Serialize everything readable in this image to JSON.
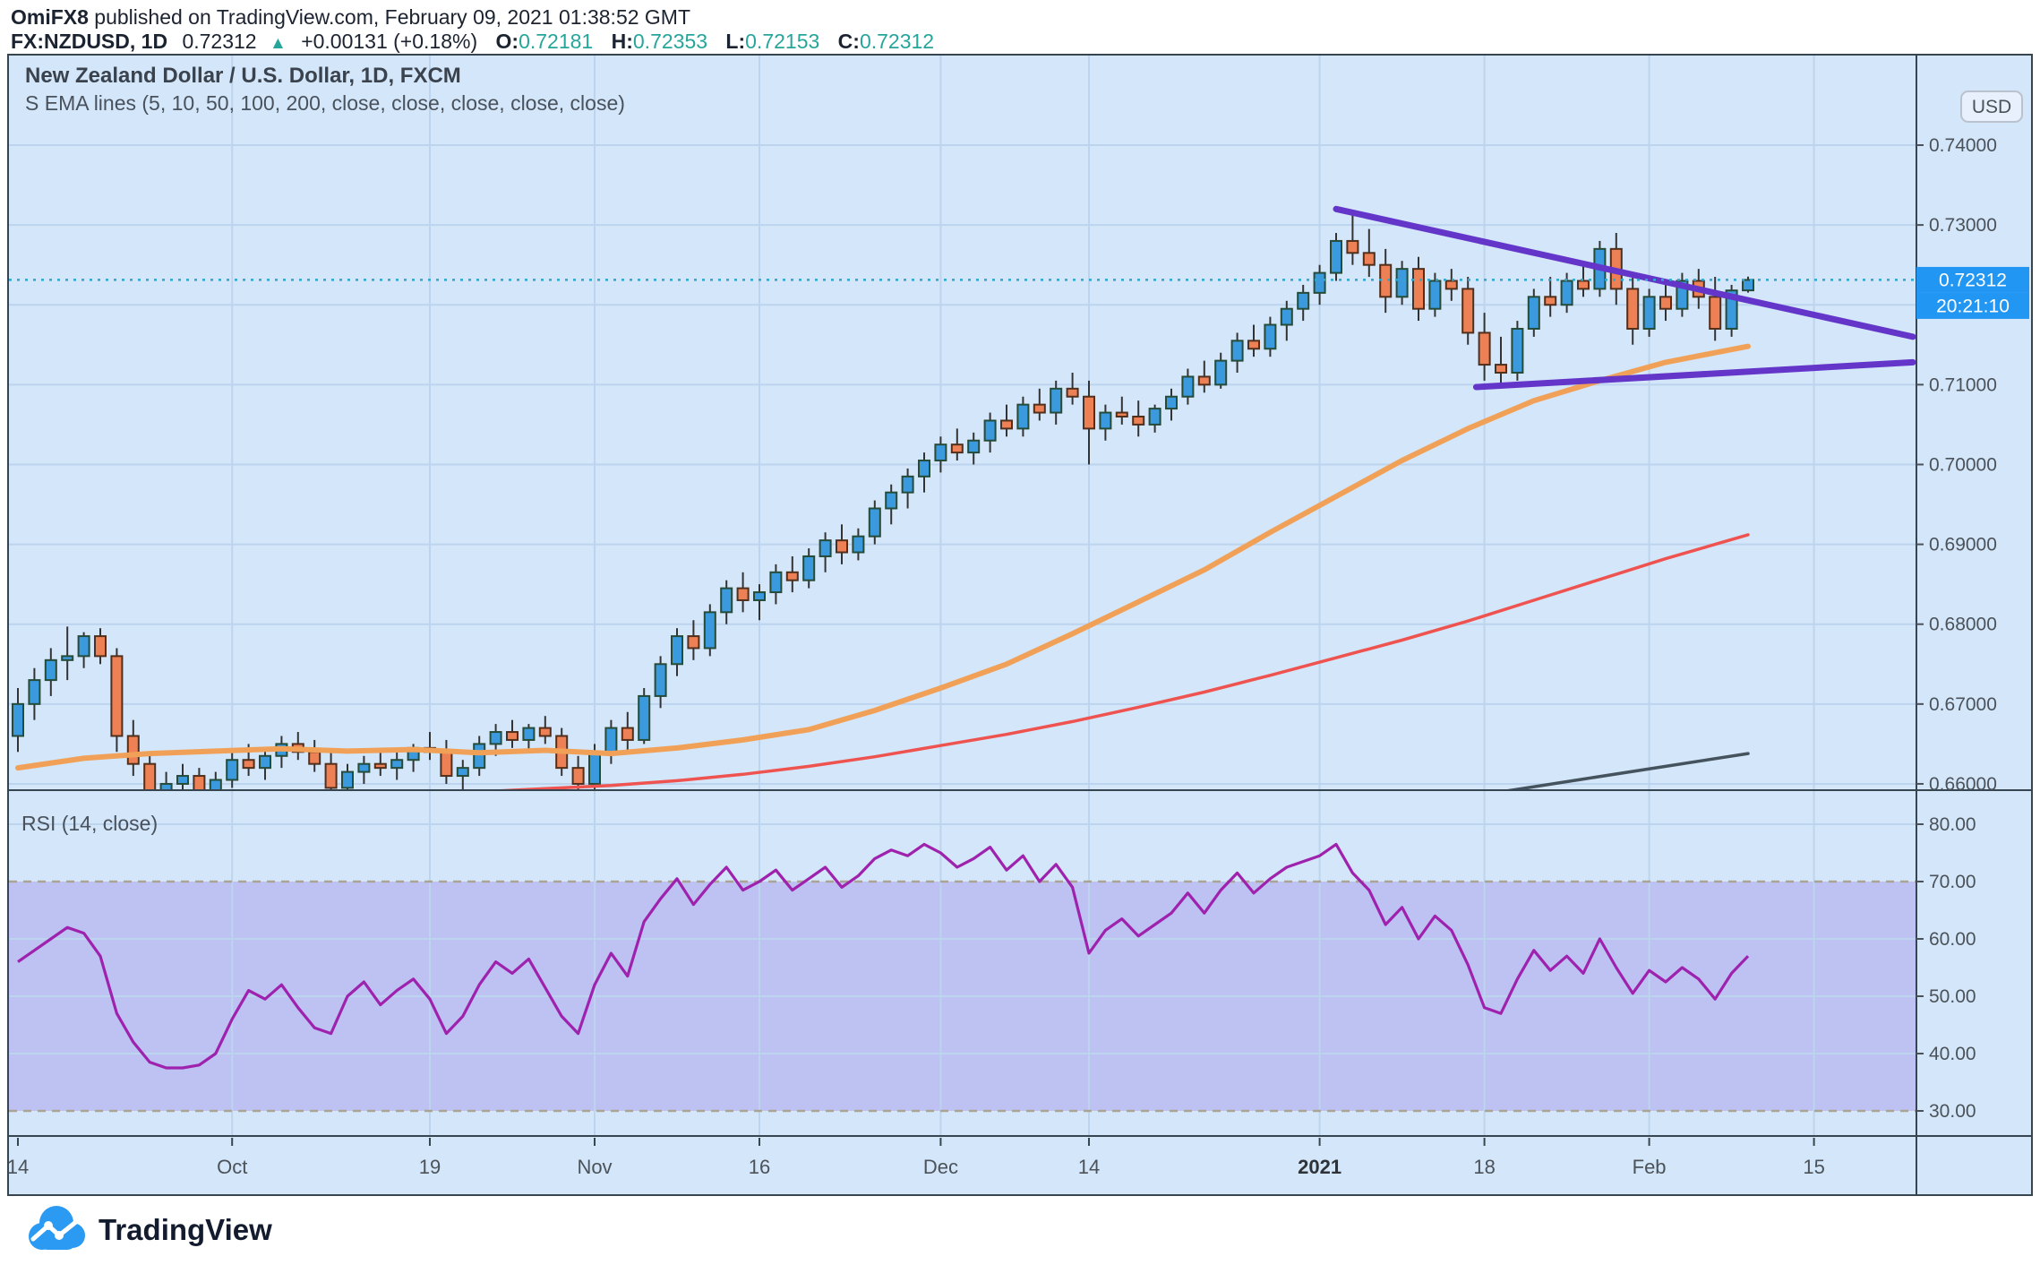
{
  "header": {
    "author": "OmiFX8",
    "published": " published on TradingView.com, February 09, 2021 01:38:52 GMT"
  },
  "symbol_bar": {
    "symbol": "FX:NZDUSD, 1D",
    "last_price": "0.72312",
    "change": "+0.00131 (+0.18%)",
    "open_label": "O:",
    "open": "0.72181",
    "high_label": "H:",
    "high": "0.72353",
    "low_label": "L:",
    "low": "0.72153",
    "close_label": "C:",
    "close": "0.72312"
  },
  "main_chart": {
    "title": "New Zealand Dollar / U.S. Dollar, 1D, FXCM",
    "indicator_label": "S EMA lines (5, 10, 50, 100, 200, close, close, close, close, close)",
    "currency_badge": "USD",
    "price_badge": "0.72312",
    "countdown_badge": "20:21:10",
    "price_axis_labels": [
      {
        "text": "0.74000",
        "p": 0.74
      },
      {
        "text": "0.73000",
        "p": 0.73
      },
      {
        "text": "0.71000",
        "p": 0.71
      },
      {
        "text": "0.70000",
        "p": 0.7
      },
      {
        "text": "0.69000",
        "p": 0.69
      },
      {
        "text": "0.68000",
        "p": 0.68
      },
      {
        "text": "0.67000",
        "p": 0.67
      },
      {
        "text": "0.66000",
        "p": 0.66
      }
    ]
  },
  "rsi_pane": {
    "label": "RSI (14, close)",
    "axis_labels": [
      {
        "text": "80.00",
        "v": 80
      },
      {
        "text": "70.00",
        "v": 70
      },
      {
        "text": "60.00",
        "v": 60
      },
      {
        "text": "50.00",
        "v": 50
      },
      {
        "text": "40.00",
        "v": 40
      },
      {
        "text": "30.00",
        "v": 30
      }
    ]
  },
  "time_axis": {
    "labels": [
      {
        "text": "14",
        "i": 0,
        "grid": false,
        "bold": false
      },
      {
        "text": "Oct",
        "i": 13,
        "grid": true,
        "bold": false
      },
      {
        "text": "19",
        "i": 25,
        "grid": true,
        "bold": false
      },
      {
        "text": "Nov",
        "i": 35,
        "grid": true,
        "bold": false
      },
      {
        "text": "16",
        "i": 45,
        "grid": true,
        "bold": false
      },
      {
        "text": "Dec",
        "i": 56,
        "grid": true,
        "bold": false
      },
      {
        "text": "14",
        "i": 65,
        "grid": true,
        "bold": false
      },
      {
        "text": "2021",
        "i": 79,
        "grid": true,
        "bold": true
      },
      {
        "text": "18",
        "i": 89,
        "grid": true,
        "bold": false
      },
      {
        "text": "Feb",
        "i": 99,
        "grid": true,
        "bold": false
      },
      {
        "text": "15",
        "i": 109,
        "grid": true,
        "bold": false
      }
    ]
  },
  "footer": {
    "brand": "TradingView"
  },
  "colors": {
    "chart_bg": "#d4e6f9",
    "grid": "#bcd4ee",
    "frame": "#36454f",
    "up": "#3b99de",
    "up_border": "#264b38",
    "down": "#ee8055",
    "down_border": "#50301d",
    "wick": "#333333",
    "ema50": "#f1a157",
    "ema100": "#ef5350",
    "ema200": "#45535e",
    "trendline": "#6336c9",
    "rsi_line": "#9e22ad",
    "rsi_band": "rgba(158,146,236,0.42)",
    "rsi_band_border": "#aaa397",
    "price_line": "#2fa7cf",
    "badge_blue": "#2196f3",
    "teal": "#26a69a",
    "usd_badge_bg": "#e7f0fc",
    "usd_badge_border": "#b9c2cd"
  },
  "chart_data": {
    "type": "candlestick",
    "symbol": "NZDUSD",
    "interval": "1D",
    "x_unit": "trading days, Sep 14 2020 through Feb 9 2021 (axis extends to Feb 15)",
    "visible_price_range": [
      0.6592,
      0.7512
    ],
    "price_gridlines": [
      0.74,
      0.73,
      0.72,
      0.71,
      0.7,
      0.69,
      0.68,
      0.67,
      0.66
    ],
    "current_price": 0.72312,
    "candles": [
      [
        0.666,
        0.672,
        0.664,
        0.67
      ],
      [
        0.67,
        0.6745,
        0.668,
        0.673
      ],
      [
        0.673,
        0.677,
        0.671,
        0.6755
      ],
      [
        0.6755,
        0.6797,
        0.673,
        0.676
      ],
      [
        0.676,
        0.679,
        0.6745,
        0.6785
      ],
      [
        0.6785,
        0.6795,
        0.675,
        0.676
      ],
      [
        0.676,
        0.677,
        0.664,
        0.666
      ],
      [
        0.666,
        0.668,
        0.661,
        0.6625
      ],
      [
        0.6625,
        0.664,
        0.6565,
        0.658
      ],
      [
        0.658,
        0.6615,
        0.657,
        0.66
      ],
      [
        0.66,
        0.6625,
        0.6585,
        0.661
      ],
      [
        0.661,
        0.662,
        0.658,
        0.659
      ],
      [
        0.659,
        0.6615,
        0.6575,
        0.6605
      ],
      [
        0.6605,
        0.664,
        0.6595,
        0.663
      ],
      [
        0.663,
        0.665,
        0.661,
        0.662
      ],
      [
        0.662,
        0.6645,
        0.6605,
        0.6635
      ],
      [
        0.6635,
        0.666,
        0.662,
        0.665
      ],
      [
        0.665,
        0.6665,
        0.663,
        0.664
      ],
      [
        0.664,
        0.6655,
        0.6615,
        0.6625
      ],
      [
        0.6625,
        0.664,
        0.658,
        0.6595
      ],
      [
        0.6595,
        0.6625,
        0.6585,
        0.6615
      ],
      [
        0.6615,
        0.6635,
        0.66,
        0.6625
      ],
      [
        0.6625,
        0.6645,
        0.661,
        0.662
      ],
      [
        0.662,
        0.664,
        0.6605,
        0.663
      ],
      [
        0.663,
        0.665,
        0.6615,
        0.6645
      ],
      [
        0.6645,
        0.6665,
        0.663,
        0.664
      ],
      [
        0.664,
        0.6655,
        0.66,
        0.661
      ],
      [
        0.661,
        0.663,
        0.659,
        0.662
      ],
      [
        0.662,
        0.666,
        0.661,
        0.665
      ],
      [
        0.665,
        0.6675,
        0.6635,
        0.6665
      ],
      [
        0.6665,
        0.668,
        0.6645,
        0.6655
      ],
      [
        0.6655,
        0.6675,
        0.664,
        0.667
      ],
      [
        0.667,
        0.6685,
        0.665,
        0.666
      ],
      [
        0.666,
        0.667,
        0.661,
        0.662
      ],
      [
        0.662,
        0.6635,
        0.6585,
        0.66
      ],
      [
        0.66,
        0.665,
        0.659,
        0.664
      ],
      [
        0.664,
        0.668,
        0.6625,
        0.667
      ],
      [
        0.667,
        0.669,
        0.664,
        0.6655
      ],
      [
        0.6655,
        0.672,
        0.665,
        0.671
      ],
      [
        0.671,
        0.676,
        0.6695,
        0.675
      ],
      [
        0.675,
        0.6795,
        0.6735,
        0.6785
      ],
      [
        0.6785,
        0.6805,
        0.6755,
        0.677
      ],
      [
        0.677,
        0.6825,
        0.676,
        0.6815
      ],
      [
        0.6815,
        0.6855,
        0.68,
        0.6845
      ],
      [
        0.6845,
        0.6865,
        0.6815,
        0.683
      ],
      [
        0.683,
        0.685,
        0.6805,
        0.684
      ],
      [
        0.684,
        0.6875,
        0.6825,
        0.6865
      ],
      [
        0.6865,
        0.6885,
        0.684,
        0.6855
      ],
      [
        0.6855,
        0.6895,
        0.6845,
        0.6885
      ],
      [
        0.6885,
        0.6915,
        0.6865,
        0.6905
      ],
      [
        0.6905,
        0.6925,
        0.6875,
        0.689
      ],
      [
        0.689,
        0.692,
        0.688,
        0.691
      ],
      [
        0.691,
        0.6955,
        0.69,
        0.6945
      ],
      [
        0.6945,
        0.6975,
        0.6925,
        0.6965
      ],
      [
        0.6965,
        0.6995,
        0.6945,
        0.6985
      ],
      [
        0.6985,
        0.7015,
        0.6965,
        0.7005
      ],
      [
        0.7005,
        0.7035,
        0.699,
        0.7025
      ],
      [
        0.7025,
        0.7045,
        0.7005,
        0.7015
      ],
      [
        0.7015,
        0.704,
        0.7,
        0.703
      ],
      [
        0.703,
        0.7065,
        0.7015,
        0.7055
      ],
      [
        0.7055,
        0.7075,
        0.7035,
        0.7045
      ],
      [
        0.7045,
        0.7085,
        0.7035,
        0.7075
      ],
      [
        0.7075,
        0.7095,
        0.7055,
        0.7065
      ],
      [
        0.7065,
        0.7105,
        0.705,
        0.7095
      ],
      [
        0.7095,
        0.7115,
        0.7075,
        0.7085
      ],
      [
        0.7085,
        0.7105,
        0.7,
        0.7045
      ],
      [
        0.7045,
        0.7075,
        0.703,
        0.7065
      ],
      [
        0.7065,
        0.7085,
        0.705,
        0.706
      ],
      [
        0.706,
        0.708,
        0.7035,
        0.705
      ],
      [
        0.705,
        0.7075,
        0.704,
        0.707
      ],
      [
        0.707,
        0.7095,
        0.7055,
        0.7085
      ],
      [
        0.7085,
        0.712,
        0.7075,
        0.711
      ],
      [
        0.711,
        0.713,
        0.709,
        0.71
      ],
      [
        0.71,
        0.714,
        0.7095,
        0.713
      ],
      [
        0.713,
        0.7165,
        0.7115,
        0.7155
      ],
      [
        0.7155,
        0.7175,
        0.7135,
        0.7145
      ],
      [
        0.7145,
        0.7185,
        0.7135,
        0.7175
      ],
      [
        0.7175,
        0.7205,
        0.7155,
        0.7195
      ],
      [
        0.7195,
        0.7225,
        0.718,
        0.7215
      ],
      [
        0.7215,
        0.725,
        0.72,
        0.724
      ],
      [
        0.724,
        0.729,
        0.723,
        0.728
      ],
      [
        0.728,
        0.7315,
        0.725,
        0.7265
      ],
      [
        0.7265,
        0.7295,
        0.7235,
        0.725
      ],
      [
        0.725,
        0.727,
        0.719,
        0.721
      ],
      [
        0.721,
        0.7255,
        0.72,
        0.7245
      ],
      [
        0.7245,
        0.726,
        0.718,
        0.7195
      ],
      [
        0.7195,
        0.724,
        0.7185,
        0.723
      ],
      [
        0.723,
        0.7245,
        0.7205,
        0.722
      ],
      [
        0.722,
        0.7235,
        0.715,
        0.7165
      ],
      [
        0.7165,
        0.719,
        0.7105,
        0.7125
      ],
      [
        0.7125,
        0.716,
        0.71,
        0.7115
      ],
      [
        0.7115,
        0.718,
        0.7105,
        0.717
      ],
      [
        0.717,
        0.722,
        0.716,
        0.721
      ],
      [
        0.721,
        0.7235,
        0.7185,
        0.72
      ],
      [
        0.72,
        0.724,
        0.719,
        0.723
      ],
      [
        0.723,
        0.725,
        0.721,
        0.722
      ],
      [
        0.722,
        0.728,
        0.721,
        0.727
      ],
      [
        0.727,
        0.729,
        0.72,
        0.722
      ],
      [
        0.722,
        0.724,
        0.715,
        0.717
      ],
      [
        0.717,
        0.722,
        0.716,
        0.721
      ],
      [
        0.721,
        0.723,
        0.718,
        0.7195
      ],
      [
        0.7195,
        0.724,
        0.7185,
        0.723
      ],
      [
        0.723,
        0.7245,
        0.7195,
        0.721
      ],
      [
        0.721,
        0.7235,
        0.7155,
        0.717
      ],
      [
        0.717,
        0.7225,
        0.716,
        0.7218
      ],
      [
        0.72181,
        0.72353,
        0.72153,
        0.72312
      ]
    ],
    "rsi_period": 14,
    "rsi_band": [
      30,
      70
    ],
    "rsi_gridlines": [
      80,
      70,
      60,
      50,
      40,
      30
    ],
    "rsi": [
      56,
      58,
      60,
      62,
      61,
      57,
      47,
      42,
      38.5,
      37.5,
      37.5,
      38,
      40,
      46,
      51,
      49.5,
      52,
      48,
      44.5,
      43.5,
      50,
      52.5,
      48.5,
      51,
      53,
      49.5,
      43.5,
      46.5,
      52,
      56,
      54,
      56.5,
      51.5,
      46.5,
      43.5,
      52,
      57.5,
      53.5,
      63,
      67,
      70.5,
      66,
      69.5,
      72.5,
      68.5,
      70,
      72,
      68.5,
      70.5,
      72.5,
      69,
      71,
      74,
      75.5,
      74.5,
      76.5,
      75,
      72.5,
      74,
      76,
      72,
      74.5,
      70,
      73,
      69,
      57.5,
      61.5,
      63.5,
      60.5,
      62.5,
      64.5,
      68,
      64.5,
      68.5,
      71.5,
      68,
      70.5,
      72.5,
      73.5,
      74.5,
      76.5,
      71.5,
      68.5,
      62.5,
      65.5,
      60,
      64,
      61.5,
      55.5,
      48,
      47,
      53,
      58,
      54.5,
      57,
      54,
      60,
      55,
      50.5,
      54.5,
      52.5,
      55,
      53,
      49.5,
      54,
      57
    ],
    "emas": [
      {
        "name": "EMA 50",
        "color_key": "ema50",
        "width": 6,
        "points": [
          [
            0,
            0.662
          ],
          [
            4,
            0.6632
          ],
          [
            8,
            0.6638
          ],
          [
            12,
            0.6641
          ],
          [
            16,
            0.6644
          ],
          [
            20,
            0.6641
          ],
          [
            24,
            0.6643
          ],
          [
            28,
            0.6639
          ],
          [
            32,
            0.6642
          ],
          [
            36,
            0.6638
          ],
          [
            40,
            0.6645
          ],
          [
            44,
            0.6655
          ],
          [
            48,
            0.6668
          ],
          [
            52,
            0.6692
          ],
          [
            56,
            0.672
          ],
          [
            60,
            0.675
          ],
          [
            64,
            0.6788
          ],
          [
            68,
            0.6828
          ],
          [
            72,
            0.6868
          ],
          [
            76,
            0.6915
          ],
          [
            80,
            0.696
          ],
          [
            84,
            0.7005
          ],
          [
            88,
            0.7045
          ],
          [
            92,
            0.708
          ],
          [
            96,
            0.7105
          ],
          [
            100,
            0.7128
          ],
          [
            103,
            0.714
          ],
          [
            105,
            0.7148
          ]
        ]
      },
      {
        "name": "EMA 100",
        "color_key": "ema100",
        "width": 3.5,
        "points": [
          [
            28,
            0.659
          ],
          [
            32,
            0.6594
          ],
          [
            36,
            0.6598
          ],
          [
            40,
            0.6604
          ],
          [
            44,
            0.6612
          ],
          [
            48,
            0.6622
          ],
          [
            52,
            0.6634
          ],
          [
            56,
            0.6648
          ],
          [
            60,
            0.6662
          ],
          [
            64,
            0.6678
          ],
          [
            68,
            0.6696
          ],
          [
            72,
            0.6715
          ],
          [
            76,
            0.6736
          ],
          [
            80,
            0.6758
          ],
          [
            84,
            0.678
          ],
          [
            88,
            0.6804
          ],
          [
            92,
            0.683
          ],
          [
            96,
            0.6856
          ],
          [
            100,
            0.6882
          ],
          [
            103,
            0.69
          ],
          [
            105,
            0.6912
          ]
        ]
      },
      {
        "name": "EMA 200",
        "color_key": "ema200",
        "width": 3.5,
        "points": [
          [
            90,
            0.659
          ],
          [
            95,
            0.6606
          ],
          [
            100,
            0.6622
          ],
          [
            105,
            0.6638
          ]
        ]
      }
    ],
    "trendlines": [
      {
        "name": "upper-wedge-line",
        "from": [
          80,
          0.732
        ],
        "to": [
          115,
          0.716
        ],
        "width": 7
      },
      {
        "name": "lower-wedge-line",
        "from": [
          88.5,
          0.7097
        ],
        "to": [
          115,
          0.7128
        ],
        "width": 7
      }
    ]
  }
}
